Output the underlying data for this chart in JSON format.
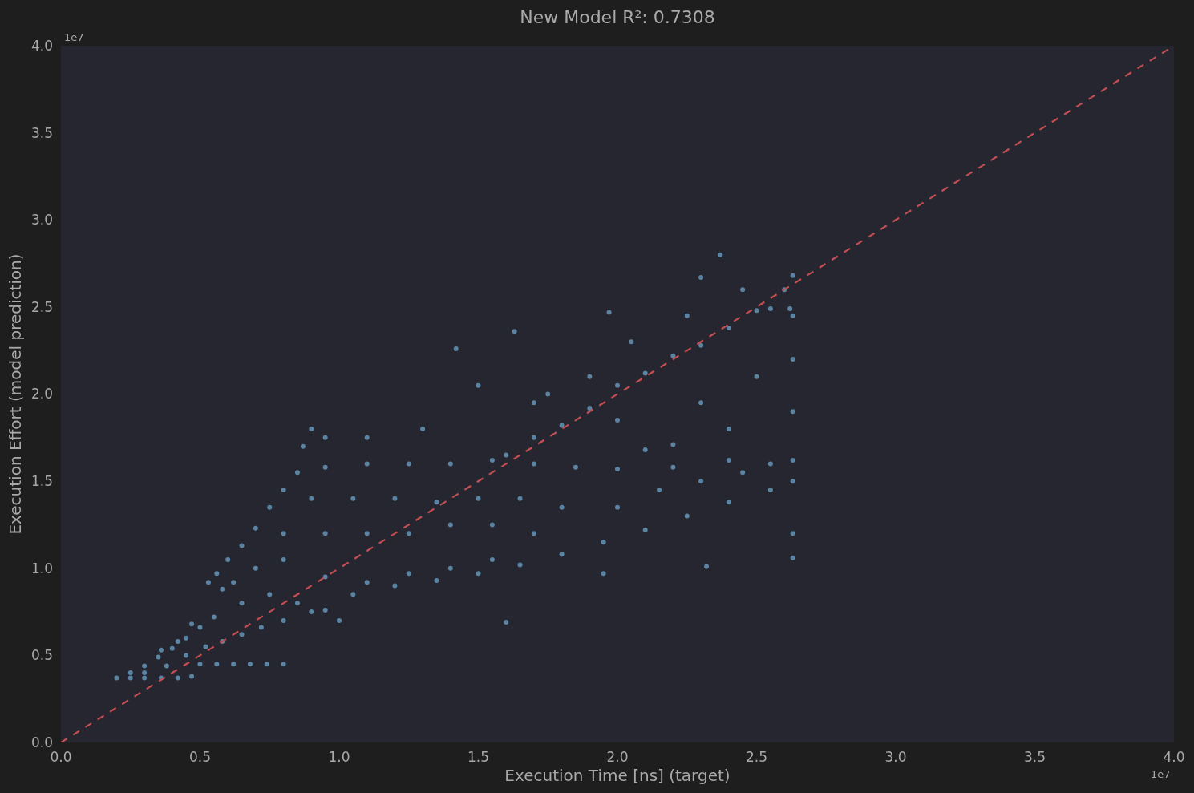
{
  "chart_data": {
    "type": "scatter",
    "title": "New Model R²: 0.7308",
    "xlabel": "Execution Time [ns] (target)",
    "ylabel": "Execution Effort (model prediction)",
    "annotations": [
      "1e7",
      "1e7"
    ],
    "xlim": [
      0,
      4
    ],
    "ylim": [
      0,
      4
    ],
    "xticks": [
      {
        "value": 0,
        "label": "0.0"
      },
      0.5,
      {
        "value": 1,
        "label": "1.0"
      },
      1.5,
      {
        "value": 2,
        "label": "2.0"
      },
      2.5,
      {
        "value": 3,
        "label": "3.0"
      },
      3.5,
      {
        "value": 4,
        "label": "4.0"
      }
    ],
    "yticks": [
      {
        "value": 0,
        "label": "0.0"
      },
      0.5,
      {
        "value": 1,
        "label": "1.0"
      },
      1.5,
      {
        "value": 2,
        "label": "2.0"
      },
      2.5,
      {
        "value": 3,
        "label": "3.0"
      },
      3.5,
      {
        "value": 4,
        "label": "4.0"
      }
    ],
    "grid": false,
    "marker": "circle",
    "line_style": "dashed",
    "series": [
      {
        "color": "#5b84a3",
        "x": [
          0.2,
          0.25,
          0.3,
          0.36,
          0.42,
          0.47,
          0.5,
          0.56,
          0.62,
          0.68,
          0.74,
          0.8,
          0.25,
          0.3,
          0.35,
          0.4,
          0.45,
          0.5,
          0.55,
          0.3,
          0.38,
          0.45,
          0.52,
          0.58,
          0.65,
          0.72,
          0.8,
          0.36,
          0.42,
          0.47,
          0.53,
          0.56,
          0.6,
          0.65,
          0.7,
          0.75,
          0.8,
          0.85,
          0.87,
          0.9,
          0.95,
          0.58,
          0.62,
          0.65,
          0.75,
          0.85,
          0.9,
          0.7,
          0.8,
          0.95,
          1.1,
          1.25,
          1.4,
          1.55,
          0.8,
          0.95,
          1.1,
          1.25,
          1.4,
          1.55,
          1.7,
          0.9,
          1.05,
          1.2,
          1.35,
          1.5,
          1.65,
          1.8,
          0.95,
          1.1,
          1.25,
          1.4,
          1.55,
          1.7,
          1.85,
          2.0,
          0.95,
          1.05,
          1.2,
          1.35,
          1.5,
          1.65,
          1.8,
          1.95,
          2.1,
          2.25,
          2.4,
          2.55,
          2.63,
          2.0,
          2.15,
          2.3,
          2.45,
          2.55,
          2.63,
          2.2,
          2.4,
          2.1,
          2.2,
          1.6,
          1.7,
          1.8,
          1.9,
          2.0,
          2.1,
          2.2,
          2.3,
          2.4,
          2.5,
          2.6,
          2.63,
          1.75,
          1.9,
          2.05,
          2.25,
          2.45,
          2.37,
          2.55,
          2.62,
          1.42,
          1.97,
          2.3,
          1.63,
          1.5,
          1.7,
          2.0,
          2.3,
          2.5,
          2.63,
          2.63,
          2.4,
          1.3,
          1.1,
          2.63,
          2.63,
          2.63,
          1.6,
          2.32,
          1.95,
          1.0
        ],
        "values": [
          0.37,
          0.37,
          0.37,
          0.37,
          0.37,
          0.38,
          0.45,
          0.45,
          0.45,
          0.45,
          0.45,
          0.45,
          0.4,
          0.44,
          0.49,
          0.54,
          0.6,
          0.66,
          0.72,
          0.4,
          0.44,
          0.5,
          0.55,
          0.58,
          0.62,
          0.66,
          0.7,
          0.53,
          0.58,
          0.68,
          0.92,
          0.97,
          1.05,
          1.13,
          1.23,
          1.35,
          1.45,
          1.55,
          1.7,
          1.8,
          1.75,
          0.88,
          0.92,
          0.8,
          0.85,
          0.8,
          0.75,
          1.0,
          1.05,
          0.95,
          0.92,
          0.97,
          1.0,
          1.05,
          1.2,
          1.2,
          1.2,
          1.2,
          1.25,
          1.25,
          1.2,
          1.4,
          1.4,
          1.4,
          1.38,
          1.4,
          1.4,
          1.35,
          1.58,
          1.6,
          1.6,
          1.6,
          1.62,
          1.6,
          1.58,
          1.57,
          0.76,
          0.85,
          0.9,
          0.93,
          0.97,
          1.02,
          1.08,
          1.15,
          1.22,
          1.3,
          1.38,
          1.45,
          1.5,
          1.35,
          1.45,
          1.5,
          1.55,
          1.6,
          1.62,
          1.58,
          1.62,
          1.68,
          1.71,
          1.65,
          1.75,
          1.82,
          1.92,
          2.05,
          2.12,
          2.22,
          2.28,
          2.38,
          2.48,
          2.6,
          2.68,
          2.0,
          2.1,
          2.3,
          2.45,
          2.6,
          2.8,
          2.49,
          2.49,
          2.26,
          2.47,
          2.67,
          2.36,
          2.05,
          1.95,
          1.85,
          1.95,
          2.1,
          2.2,
          1.9,
          1.8,
          1.8,
          1.75,
          2.45,
          1.2,
          1.06,
          0.69,
          1.01,
          0.97,
          0.7
        ]
      },
      {
        "type": "line",
        "marker": "none",
        "color": "#c44e52",
        "x": [
          0,
          4
        ],
        "values": [
          0,
          4
        ]
      }
    ]
  }
}
